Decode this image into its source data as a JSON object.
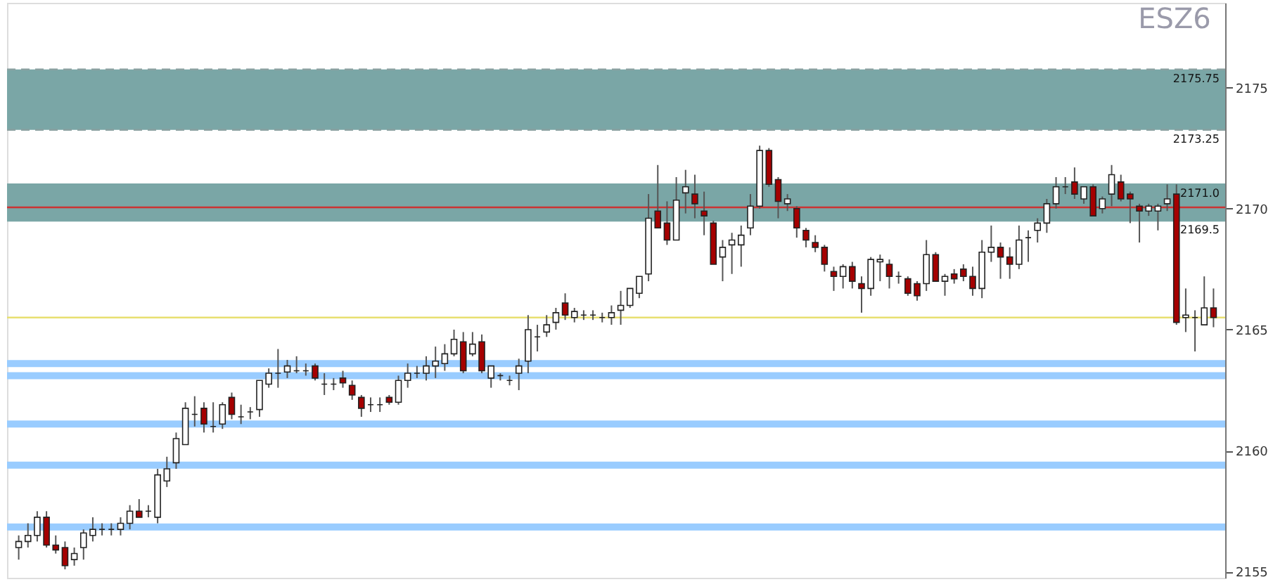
{
  "chart_data": {
    "type": "candlestick",
    "title": "ESZ6",
    "categories": [
      null,
      null,
      null,
      null,
      null,
      null,
      null,
      null,
      null,
      null,
      null,
      null,
      null,
      null,
      null,
      null,
      null,
      null,
      null,
      null,
      null,
      null,
      null,
      null,
      null,
      null,
      null,
      null,
      null,
      null,
      null,
      null,
      null,
      null,
      null,
      null,
      null,
      null,
      null,
      null,
      null,
      null,
      null,
      null,
      null,
      null,
      null,
      null,
      null,
      null,
      null,
      null,
      null,
      null,
      null,
      null,
      null,
      null,
      null,
      null,
      null,
      null,
      null,
      null,
      null,
      null,
      null,
      null,
      null,
      null,
      null,
      null,
      null,
      null,
      null,
      null,
      null,
      null,
      null,
      null,
      null,
      null,
      null,
      null,
      null,
      null,
      null,
      null,
      null,
      null,
      null,
      null,
      null,
      null,
      null,
      null,
      null,
      null,
      null,
      null,
      null,
      null,
      null,
      null,
      null,
      null,
      null,
      null,
      null,
      null,
      null,
      null,
      null,
      null,
      null,
      null,
      null,
      null,
      null,
      null,
      null,
      null,
      null,
      null,
      null,
      null,
      null,
      null,
      null,
      null
    ],
    "ohlc": [
      [
        2156.0,
        2156.5,
        2155.5,
        2156.25
      ],
      [
        2156.25,
        2157,
        2156,
        2156.5
      ],
      [
        2156.5,
        2157.5,
        2156.25,
        2157.25
      ],
      [
        2157.25,
        2157.5,
        2156,
        2156.1
      ],
      [
        2156.1,
        2156.5,
        2155.75,
        2155.9
      ],
      [
        2156,
        2156.25,
        2155.1,
        2155.25
      ],
      [
        2155.5,
        2156,
        2155.25,
        2155.75
      ],
      [
        2156,
        2156.75,
        2155.5,
        2156.6
      ],
      [
        2156.5,
        2157.25,
        2156.25,
        2156.75
      ],
      [
        2156.75,
        2157,
        2156.5,
        2156.75
      ],
      [
        2156.75,
        2157,
        2156.5,
        2156.75
      ],
      [
        2156.75,
        2157.25,
        2156.5,
        2157
      ],
      [
        2157,
        2157.75,
        2156.75,
        2157.5
      ],
      [
        2157.5,
        2158,
        2157.25,
        2157.25
      ],
      [
        2157.5,
        2157.75,
        2157.25,
        2157.5
      ],
      [
        2157.25,
        2159.25,
        2157,
        2159
      ],
      [
        2158.75,
        2159.75,
        2158.5,
        2159.25
      ],
      [
        2159.5,
        2160.75,
        2159.25,
        2160.5
      ],
      [
        2160.25,
        2162,
        2160.25,
        2161.75
      ],
      [
        2161.5,
        2162.25,
        2161,
        2161.5
      ],
      [
        2161.75,
        2162,
        2160.75,
        2161.1
      ],
      [
        2161,
        2162,
        2160.75,
        2161
      ],
      [
        2161.1,
        2162,
        2160.9,
        2161.9
      ],
      [
        2162.2,
        2162.4,
        2161.3,
        2161.5
      ],
      [
        2161.4,
        2161.9,
        2161.1,
        2161.4
      ],
      [
        2161.6,
        2161.8,
        2161.3,
        2161.6
      ],
      [
        2161.7,
        2162.9,
        2161.4,
        2162.9
      ],
      [
        2162.75,
        2163.4,
        2162.6,
        2163.2
      ],
      [
        2163.2,
        2164.2,
        2162.6,
        2163.2
      ],
      [
        2163.25,
        2163.75,
        2163,
        2163.5
      ],
      [
        2163.3,
        2163.9,
        2163.2,
        2163.3
      ],
      [
        2163.3,
        2163.6,
        2163.1,
        2163.3
      ],
      [
        2163.5,
        2163.6,
        2162.9,
        2163
      ],
      [
        2162.75,
        2163.2,
        2162.3,
        2162.75
      ],
      [
        2162.75,
        2163,
        2162.5,
        2162.75
      ],
      [
        2163,
        2163.3,
        2162.6,
        2162.8
      ],
      [
        2162.7,
        2162.9,
        2162.1,
        2162.3
      ],
      [
        2162.2,
        2162.3,
        2161.4,
        2161.75
      ],
      [
        2161.9,
        2162.2,
        2161.6,
        2161.9
      ],
      [
        2161.9,
        2162.2,
        2161.6,
        2161.9
      ],
      [
        2162.2,
        2162.3,
        2161.9,
        2162
      ],
      [
        2162,
        2163.1,
        2161.9,
        2162.9
      ],
      [
        2162.9,
        2163.6,
        2162.6,
        2163.2
      ],
      [
        2163.2,
        2163.5,
        2163,
        2163.2
      ],
      [
        2163.2,
        2163.9,
        2162.9,
        2163.5
      ],
      [
        2163.5,
        2164.3,
        2163,
        2163.7
      ],
      [
        2163.6,
        2164.4,
        2163.3,
        2164
      ],
      [
        2164,
        2165,
        2163.9,
        2164.6
      ],
      [
        2164.5,
        2164.9,
        2163.2,
        2163.3
      ],
      [
        2164,
        2164.9,
        2163.9,
        2164.4
      ],
      [
        2164.5,
        2164.8,
        2163.2,
        2163.3
      ],
      [
        2163,
        2163.5,
        2162.6,
        2163.5
      ],
      [
        2163.1,
        2163.2,
        2162.9,
        2163.1
      ],
      [
        2162.9,
        2163.1,
        2162.7,
        2162.9
      ],
      [
        2163.2,
        2163.8,
        2162.5,
        2163.5
      ],
      [
        2163.7,
        2165.6,
        2163.2,
        2165
      ],
      [
        2164.7,
        2165.2,
        2164.1,
        2164.7
      ],
      [
        2164.9,
        2165.6,
        2164.7,
        2165.2
      ],
      [
        2165.3,
        2165.9,
        2165,
        2165.7
      ],
      [
        2166.1,
        2166.5,
        2165.4,
        2165.6
      ],
      [
        2165.5,
        2165.9,
        2165.3,
        2165.75
      ],
      [
        2165.6,
        2165.8,
        2165.4,
        2165.6
      ],
      [
        2165.6,
        2165.8,
        2165.4,
        2165.6
      ],
      [
        2165.5,
        2165.7,
        2165.3,
        2165.5
      ],
      [
        2165.5,
        2166,
        2165.2,
        2165.7
      ],
      [
        2165.8,
        2166.6,
        2165.2,
        2166
      ],
      [
        2166,
        2166.7,
        2165.9,
        2166.7
      ],
      [
        2166.5,
        2167.2,
        2166.3,
        2167.2
      ],
      [
        2167.3,
        2170.6,
        2167,
        2169.6
      ],
      [
        2169.9,
        2171.8,
        2169.2,
        2169.2
      ],
      [
        2169.4,
        2170.3,
        2168.5,
        2168.7
      ],
      [
        2168.7,
        2171.3,
        2168.7,
        2170.35
      ],
      [
        2170.65,
        2171.6,
        2169.8,
        2170.9
      ],
      [
        2170.6,
        2171.4,
        2169.6,
        2170.2
      ],
      [
        2169.9,
        2170.7,
        2168.9,
        2169.7
      ],
      [
        2169.4,
        2169.5,
        2167.7,
        2167.7
      ],
      [
        2168.0,
        2168.7,
        2167,
        2168.4
      ],
      [
        2168.5,
        2169,
        2167.3,
        2168.7
      ],
      [
        2168.5,
        2169.3,
        2167.6,
        2168.9
      ],
      [
        2169.2,
        2170.6,
        2168.9,
        2170.1
      ],
      [
        2170.1,
        2172.6,
        2170,
        2172.4
      ],
      [
        2172.4,
        2172.5,
        2170.9,
        2171.0
      ],
      [
        2171.2,
        2171.3,
        2169.6,
        2170.3
      ],
      [
        2170.2,
        2170.6,
        2169.9,
        2170.4
      ],
      [
        2170.0,
        2170.1,
        2168.8,
        2169.2
      ],
      [
        2169.1,
        2169.2,
        2168.4,
        2168.7
      ],
      [
        2168.6,
        2168.9,
        2168.2,
        2168.4
      ],
      [
        2168.4,
        2168.5,
        2167.4,
        2167.7
      ],
      [
        2167.4,
        2167.6,
        2166.6,
        2167.2
      ],
      [
        2167.2,
        2167.7,
        2166.7,
        2167.6
      ],
      [
        2167.6,
        2167.8,
        2166.7,
        2167.0
      ],
      [
        2166.9,
        2167.2,
        2165.7,
        2166.7
      ],
      [
        2166.7,
        2168.0,
        2166.4,
        2167.9
      ],
      [
        2167.8,
        2168.1,
        2167.0,
        2167.9
      ],
      [
        2167.7,
        2167.9,
        2166.7,
        2167.2
      ],
      [
        2167.2,
        2167.4,
        2166.9,
        2167.2
      ],
      [
        2167.1,
        2167.2,
        2166.4,
        2166.5
      ],
      [
        2166.9,
        2167.0,
        2166.2,
        2166.4
      ],
      [
        2166.9,
        2168.7,
        2166.6,
        2168.1
      ],
      [
        2168.1,
        2168.2,
        2167.0,
        2167.0
      ],
      [
        2167.0,
        2167.3,
        2166.4,
        2167.2
      ],
      [
        2167.3,
        2167.5,
        2166.9,
        2167.1
      ],
      [
        2167.5,
        2167.7,
        2167,
        2167.2
      ],
      [
        2167.2,
        2167.6,
        2166.4,
        2166.7
      ],
      [
        2166.7,
        2168.7,
        2166.3,
        2168.2
      ],
      [
        2168.2,
        2169.3,
        2167.8,
        2168.4
      ],
      [
        2168.4,
        2168.6,
        2167.1,
        2168.0
      ],
      [
        2168.0,
        2168.4,
        2167.1,
        2167.7
      ],
      [
        2167.7,
        2169.3,
        2167.5,
        2168.7
      ],
      [
        2168.8,
        2169.1,
        2167.8,
        2168.8
      ],
      [
        2169.1,
        2169.6,
        2168.6,
        2169.4
      ],
      [
        2169.4,
        2170.4,
        2169.0,
        2170.2
      ],
      [
        2170.2,
        2171.3,
        2170.0,
        2170.9
      ],
      [
        2170.9,
        2171.3,
        2170.6,
        2170.9
      ],
      [
        2171.1,
        2171.7,
        2170.4,
        2170.6
      ],
      [
        2170.4,
        2170.9,
        2170.2,
        2170.9
      ],
      [
        2170.9,
        2171.0,
        2169.7,
        2169.7
      ],
      [
        2170.0,
        2170.5,
        2169.8,
        2170.4
      ],
      [
        2170.6,
        2171.8,
        2170.1,
        2171.4
      ],
      [
        2171.1,
        2171.4,
        2170.3,
        2170.4
      ],
      [
        2170.6,
        2170.7,
        2169.4,
        2170.4
      ],
      [
        2170.1,
        2170.2,
        2168.6,
        2169.9
      ],
      [
        2169.9,
        2170.2,
        2169.7,
        2170.1
      ],
      [
        2169.9,
        2170.2,
        2169.1,
        2170.1
      ],
      [
        2170.2,
        2171.0,
        2169.9,
        2170.4
      ],
      [
        2170.6,
        2171.0,
        2165.2,
        2165.3
      ],
      [
        2165.5,
        2166.7,
        2164.9,
        2165.6
      ],
      [
        2165.5,
        2165.8,
        2164.1,
        2165.5
      ],
      [
        2165.2,
        2167.2,
        2165.2,
        2165.9
      ],
      [
        2165.9,
        2166.7,
        2165.1,
        2165.5
      ]
    ],
    "colors": [
      "#ffffff",
      "#ffffff",
      "#ffffff",
      "#a50000",
      "#a50000",
      "#a50000",
      "#ffffff",
      "#ffffff",
      "#ffffff",
      "#222222",
      "#222222",
      "#ffffff",
      "#ffffff",
      "#a50000",
      "#222222",
      "#ffffff",
      "#ffffff",
      "#ffffff",
      "#ffffff",
      "#222222",
      "#a50000",
      "#222222",
      "#ffffff",
      "#a50000",
      "#222222",
      "#222222",
      "#ffffff",
      "#ffffff",
      "#222222",
      "#ffffff",
      "#222222",
      "#222222",
      "#a50000",
      "#222222",
      "#222222",
      "#a50000",
      "#a50000",
      "#a50000",
      "#222222",
      "#222222",
      "#a50000",
      "#ffffff",
      "#ffffff",
      "#222222",
      "#ffffff",
      "#ffffff",
      "#ffffff",
      "#ffffff",
      "#a50000",
      "#ffffff",
      "#a50000",
      "#ffffff",
      "#222222",
      "#222222",
      "#ffffff",
      "#ffffff",
      "#222222",
      "#ffffff",
      "#ffffff",
      "#a50000",
      "#ffffff",
      "#222222",
      "#222222",
      "#222222",
      "#ffffff",
      "#ffffff",
      "#ffffff",
      "#ffffff",
      "#ffffff",
      "#a50000",
      "#a50000",
      "#ffffff",
      "#ffffff",
      "#a50000",
      "#a50000",
      "#a50000",
      "#ffffff",
      "#ffffff",
      "#ffffff",
      "#ffffff",
      "#ffffff",
      "#a50000",
      "#a50000",
      "#ffffff",
      "#a50000",
      "#a50000",
      "#a50000",
      "#a50000",
      "#a50000",
      "#ffffff",
      "#a50000",
      "#a50000",
      "#ffffff",
      "#ffffff",
      "#a50000",
      "#222222",
      "#a50000",
      "#a50000",
      "#ffffff",
      "#a50000",
      "#ffffff",
      "#a50000",
      "#a50000",
      "#a50000",
      "#ffffff",
      "#ffffff",
      "#a50000",
      "#a50000",
      "#ffffff",
      "#222222",
      "#ffffff",
      "#ffffff",
      "#ffffff",
      "#222222",
      "#a50000",
      "#ffffff",
      "#a50000",
      "#ffffff",
      "#ffffff",
      "#a50000",
      "#a50000",
      "#a50000",
      "#ffffff",
      "#ffffff",
      "#ffffff",
      "#a50000",
      "#ffffff",
      "#222222",
      "#ffffff",
      "#a50000"
    ],
    "ylim": [
      2154.75,
      2178.5
    ],
    "yticks": [
      2155,
      2160,
      2165,
      2170,
      2175
    ],
    "tick_labels": "y",
    "grid": false,
    "legend": false,
    "bands": [
      {
        "axis": "y",
        "from": 2173.25,
        "to": 2175.75,
        "color": "#7aa6a6"
      },
      {
        "axis": "y",
        "from": 2169.5,
        "to": 2171.0,
        "color": "#7aa6a6"
      }
    ],
    "ref_lines": [
      {
        "axis": "y",
        "value": 2175.75,
        "label": "2175.75",
        "color": "#8aa0a0",
        "line_style": "dashed"
      },
      {
        "axis": "y",
        "value": 2173.25,
        "label": "2173.25",
        "color": "#8aa0a0",
        "line_style": "dashed"
      },
      {
        "axis": "y",
        "value": 2171.0,
        "label": "2171.0",
        "color": "#7aa6a6",
        "line_style": "solid"
      },
      {
        "axis": "y",
        "value": 2169.5,
        "label": "2169.5",
        "color": "#7aa6a6",
        "line_style": "solid"
      },
      {
        "axis": "y",
        "value": 2170.05,
        "color": "#cc3333",
        "line_style": "solid"
      },
      {
        "axis": "y",
        "value": 2165.5,
        "color": "#e8e070",
        "line_style": "solid"
      },
      {
        "axis": "y",
        "value": 2163.6,
        "color": "#99ccff",
        "line_style": "solid"
      },
      {
        "axis": "y",
        "value": 2163.1,
        "color": "#99ccff",
        "line_style": "solid"
      },
      {
        "axis": "y",
        "value": 2161.1,
        "color": "#99ccff",
        "line_style": "solid"
      },
      {
        "axis": "y",
        "value": 2159.4,
        "color": "#99ccff",
        "line_style": "solid"
      },
      {
        "axis": "y",
        "value": 2156.85,
        "color": "#99ccff",
        "line_style": "solid"
      }
    ]
  }
}
